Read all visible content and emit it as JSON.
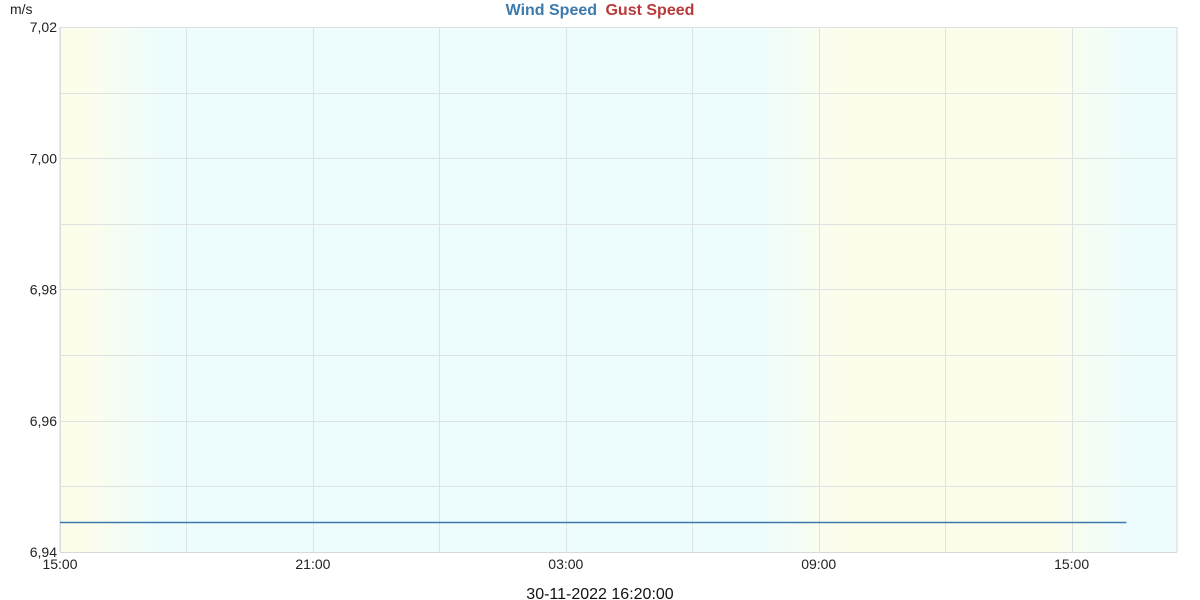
{
  "chart_data": {
    "type": "line",
    "title": "",
    "legend": {
      "placement": "top-center",
      "entries": [
        {
          "name": "Wind Speed",
          "color": "#3d7aab"
        },
        {
          "name": "Gust Speed",
          "color": "#b83a3a"
        }
      ]
    },
    "ylabel": "m/s",
    "xlabel": "",
    "ylim": [
      6.94,
      7.02
    ],
    "y_ticks": [
      "7,02",
      "7,00",
      "6,98",
      "6,96",
      "6,94"
    ],
    "y_tick_values": [
      7.02,
      7.0,
      6.98,
      6.96,
      6.94
    ],
    "x_range_hours": [
      0,
      26.5
    ],
    "x_ticks": [
      {
        "label": "15:00",
        "hour": 0
      },
      {
        "label": "21:00",
        "hour": 6
      },
      {
        "label": "03:00",
        "hour": 12
      },
      {
        "label": "09:00",
        "hour": 18
      },
      {
        "label": "15:00",
        "hour": 24
      }
    ],
    "grid": true,
    "series": [
      {
        "name": "Wind Speed",
        "color": "#3d7aab",
        "points": [
          {
            "hour": 0,
            "value": 6.9445
          },
          {
            "hour": 25.3,
            "value": 6.9445
          }
        ]
      },
      {
        "name": "Gust Speed",
        "color": "#b83a3a",
        "points": []
      }
    ],
    "background_bands": [
      {
        "from_hour": 0,
        "to_hour": 1.5,
        "color": "#fdfdec"
      },
      {
        "from_hour": 1.5,
        "to_hour": 17.5,
        "color": "#edfdfd"
      },
      {
        "from_hour": 17.5,
        "to_hour": 24.5,
        "color": "#fdfdec"
      },
      {
        "from_hour": 24.5,
        "to_hour": 26.5,
        "color": "#edfdfd"
      }
    ]
  },
  "footer": {
    "timestamp": "30-11-2022 16:20:00"
  }
}
